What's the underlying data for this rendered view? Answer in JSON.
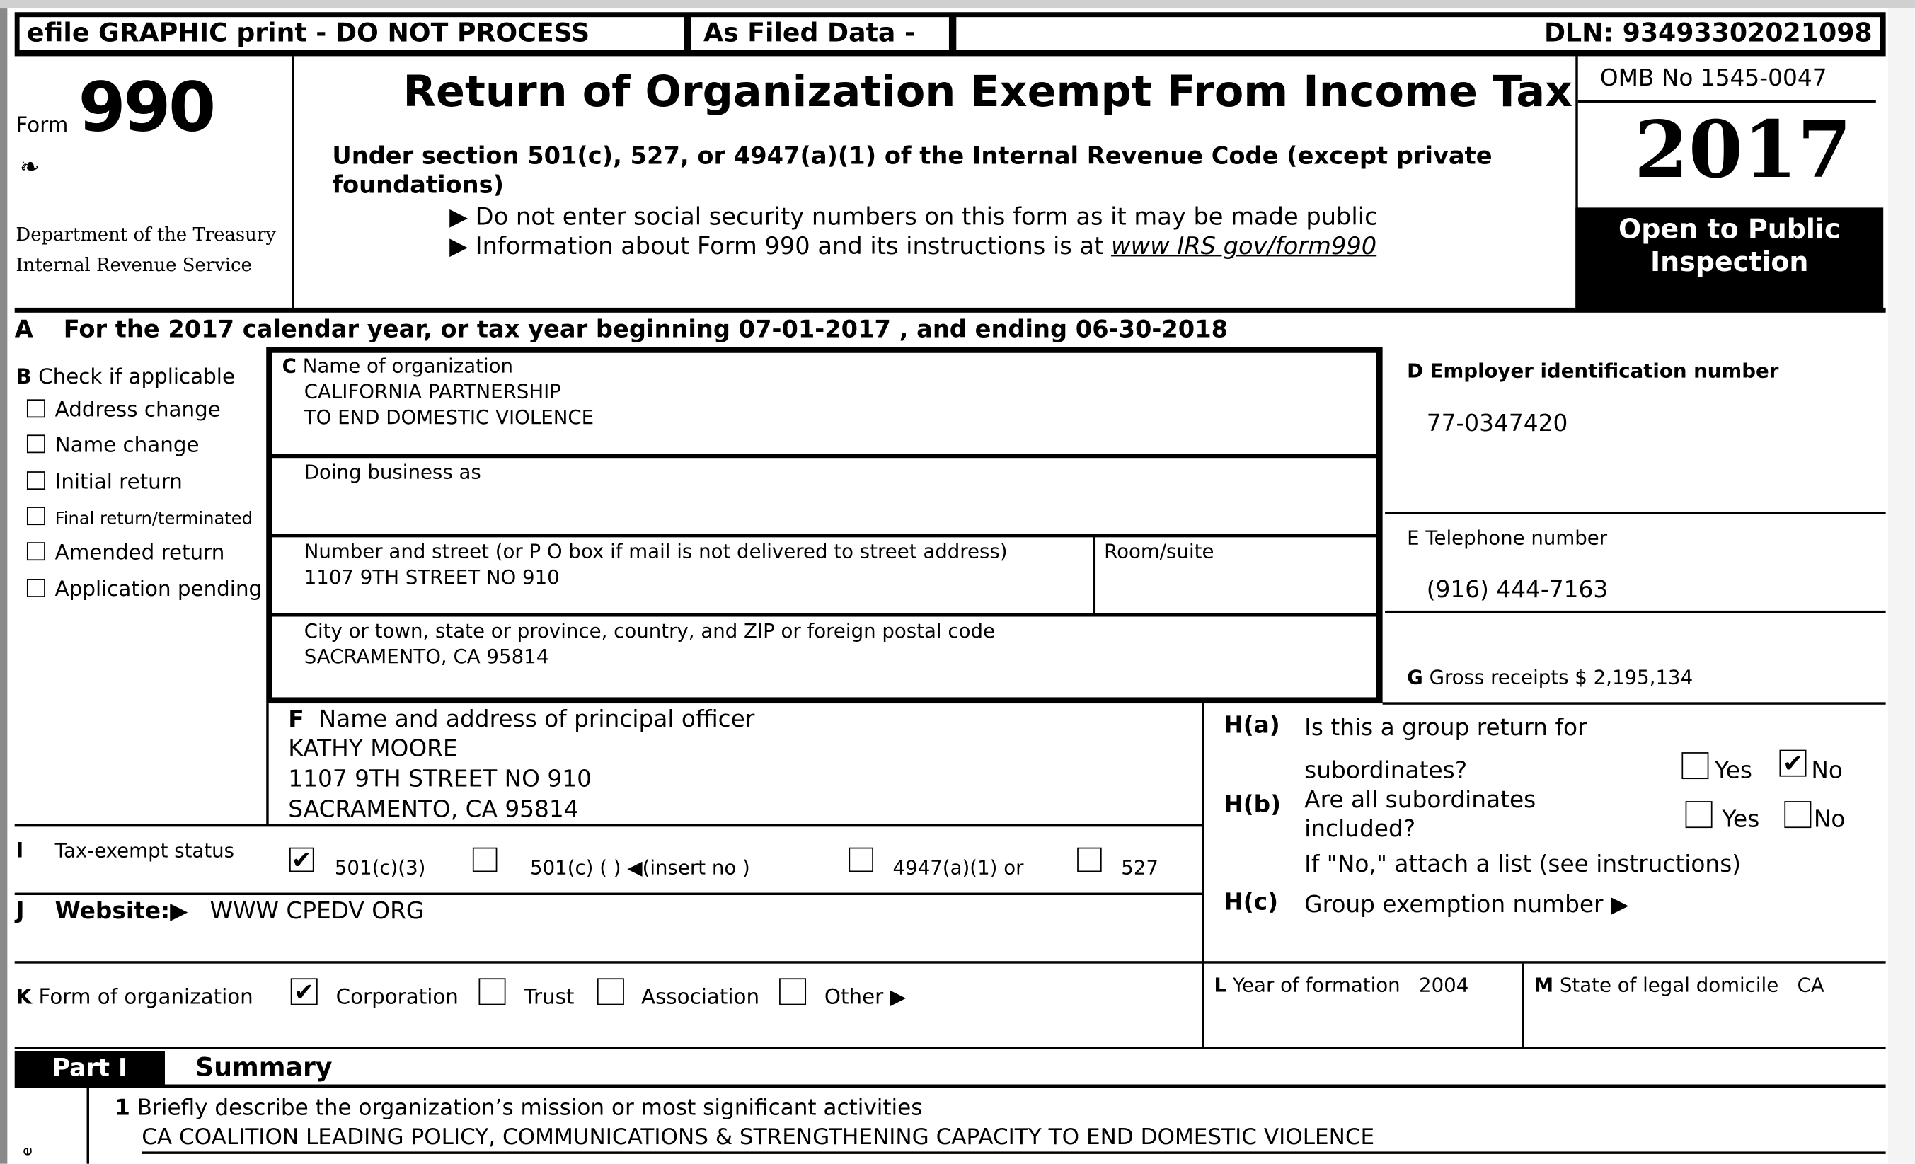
{
  "header_bar": {
    "efile_label": "efile GRAPHIC print - DO NOT PROCESS",
    "as_filed_label": "As Filed Data -",
    "dln": "DLN: 93493302021098"
  },
  "form_id": {
    "form_word": "Form",
    "form_number": "990",
    "dept_line1": "Department of the Treasury",
    "dept_line2": "Internal Revenue Service"
  },
  "title": {
    "main": "Return of Organization Exempt From Income Tax",
    "subtitle_line1": "Under section 501(c), 527, or 4947(a)(1) of the Internal Revenue Code (except private",
    "subtitle_line2": "foundations)",
    "note1": "Do not enter social security numbers on this form as it may be made public",
    "note2_prefix": "Information about Form 990 and its instructions is at ",
    "note2_link": "www IRS gov/form990"
  },
  "year_box": {
    "omb": "OMB No  1545-0047",
    "year": "2017",
    "open_line1": "Open to Public",
    "open_line2": "Inspection"
  },
  "line_a": {
    "letter": "A",
    "text": "For the 2017 calendar year, or tax year beginning 07-01-2017   , and ending 06-30-2018"
  },
  "section_b": {
    "label": "B",
    "title": "Check if applicable",
    "items": [
      {
        "label": "Address change",
        "checked": false
      },
      {
        "label": "Name change",
        "checked": false
      },
      {
        "label": "Initial return",
        "checked": false
      },
      {
        "label": "Final return/terminated",
        "checked": false
      },
      {
        "label": "Amended return",
        "checked": false
      },
      {
        "label": "Application pending",
        "checked": false
      }
    ]
  },
  "section_c": {
    "letter": "C",
    "name_label": "Name of organization",
    "name_line1": "CALIFORNIA PARTNERSHIP",
    "name_line2": "TO END DOMESTIC VIOLENCE",
    "dba_label": "Doing business as",
    "street_label": "Number and street (or P O  box if mail is not delivered to street address)",
    "street_value": "1107 9TH STREET NO 910",
    "room_label": "Room/suite",
    "city_label": "City or town, state or province, country, and ZIP or foreign postal code",
    "city_value": "SACRAMENTO, CA  95814"
  },
  "section_d": {
    "letter": "D",
    "label": "Employer identification number",
    "value": "77-0347420"
  },
  "section_e": {
    "label": "E Telephone number",
    "value": "(916) 444-7163"
  },
  "section_g": {
    "letter": "G",
    "label": "Gross receipts $ 2,195,134"
  },
  "section_f": {
    "letter": "F",
    "label": "Name and address of principal officer",
    "line1": "KATHY MOORE",
    "line2": "1107 9TH STREET NO 910",
    "line3": "SACRAMENTO, CA  95814"
  },
  "section_h": {
    "ha_label": "H(a)",
    "ha_text1": "Is this a group return for",
    "ha_text2": "subordinates?",
    "ha_yes": "Yes",
    "ha_no": "No",
    "ha_answer": "No",
    "hb_label": "H(b)",
    "hb_text1": "Are all subordinates",
    "hb_text2": "included?",
    "hb_yes": "Yes",
    "hb_no": "No",
    "hb_note": "If \"No,\" attach a list  (see instructions)",
    "hc_label": "H(c)",
    "hc_text": "Group exemption number"
  },
  "section_i": {
    "letter": "I",
    "label": "Tax-exempt status",
    "opt1": "501(c)(3)",
    "opt1_checked": true,
    "opt2": "501(c) (   )",
    "opt2_suffix": "(insert no )",
    "opt3": "4947(a)(1) or",
    "opt4": "527"
  },
  "section_j": {
    "letter": "J",
    "label": "Website:",
    "value": "WWW CPEDV ORG"
  },
  "section_k": {
    "letter": "K",
    "label": "Form of organization",
    "opt1": "Corporation",
    "opt1_checked": true,
    "opt2": "Trust",
    "opt3": "Association",
    "opt4": "Other"
  },
  "section_l": {
    "letter": "L",
    "label": "Year of formation",
    "value": "2004"
  },
  "section_m": {
    "letter": "M",
    "label": "State of legal domicile",
    "value": "CA"
  },
  "part1": {
    "badge": "Part I",
    "title": "Summary",
    "item1_num": "1",
    "item1_label": "Briefly describe the organization’s mission or most significant activities",
    "item1_value": "CA COALITION LEADING POLICY, COMMUNICATIONS & STRENGTHENING CAPACITY TO END DOMESTIC VIOLENCE",
    "side_glyph": "e"
  },
  "colors": {
    "ink": "#000000",
    "frame_gray": "#8a8a8a"
  }
}
